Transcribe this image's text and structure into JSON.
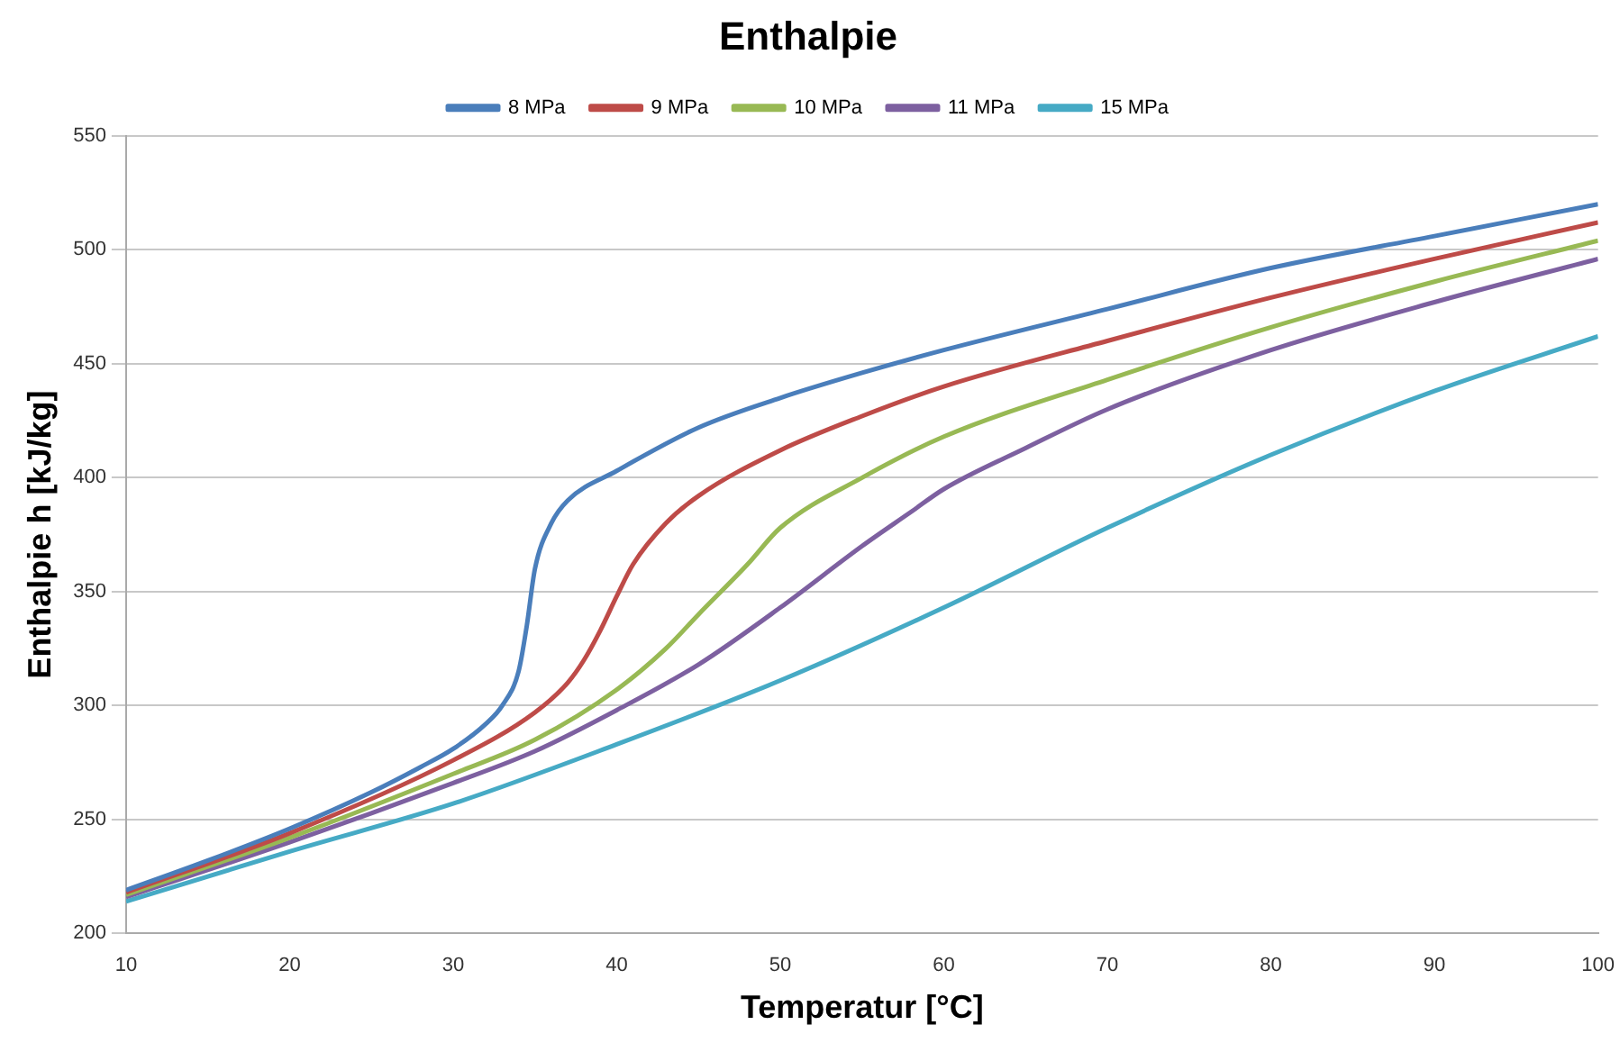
{
  "chart_data": {
    "type": "line",
    "title": "Enthalpie",
    "xlabel": "Temperatur [°C]",
    "ylabel": "Enthalpie h [kJ/kg]",
    "xlim": [
      10,
      100
    ],
    "xticks": [
      10,
      20,
      30,
      40,
      50,
      60,
      70,
      80,
      90,
      100
    ],
    "ylim": [
      200,
      550
    ],
    "yticks": [
      200,
      250,
      300,
      350,
      400,
      450,
      500,
      550
    ],
    "grid": "y",
    "legend": "top",
    "marker": "none",
    "line_style": "solid",
    "series": [
      {
        "name": "8 MPa",
        "color": "#4a7ebb",
        "x": [
          10,
          15,
          20,
          25,
          28,
          30,
          32,
          33,
          34,
          34.5,
          35,
          36,
          37,
          40,
          45,
          50,
          55,
          60,
          70,
          80,
          90,
          100
        ],
        "values": [
          219,
          232,
          246,
          262,
          273,
          281,
          292,
          300,
          315,
          335,
          360,
          380,
          390,
          403,
          422,
          435,
          446,
          456,
          474,
          492,
          506,
          520
        ]
      },
      {
        "name": "9 MPa",
        "color": "#be4b48",
        "x": [
          10,
          20,
          30,
          35,
          37,
          38,
          39,
          40,
          41,
          43,
          45,
          50,
          55,
          60,
          70,
          80,
          90,
          100
        ],
        "values": [
          218,
          244,
          276,
          297,
          310,
          320,
          333,
          348,
          362,
          380,
          392,
          412,
          427,
          440,
          460,
          479,
          496,
          512
        ]
      },
      {
        "name": "10 MPa",
        "color": "#98b954",
        "x": [
          10,
          20,
          30,
          35,
          40,
          43,
          45,
          48,
          50,
          55,
          60,
          70,
          80,
          90,
          100
        ],
        "values": [
          217,
          242,
          270,
          285,
          307,
          325,
          340,
          362,
          378,
          400,
          418,
          443,
          466,
          486,
          504
        ]
      },
      {
        "name": "11 MPa",
        "color": "#7d60a0",
        "x": [
          10,
          20,
          30,
          35,
          40,
          45,
          50,
          55,
          58,
          60,
          65,
          70,
          80,
          90,
          100
        ],
        "values": [
          216,
          240,
          266,
          280,
          298,
          318,
          343,
          370,
          385,
          395,
          413,
          430,
          456,
          477,
          496
        ]
      },
      {
        "name": "15 MPa",
        "color": "#46aac5",
        "x": [
          10,
          20,
          30,
          40,
          50,
          60,
          70,
          80,
          90,
          100
        ],
        "values": [
          214,
          236,
          257,
          283,
          311,
          343,
          378,
          410,
          438,
          462
        ]
      }
    ]
  }
}
